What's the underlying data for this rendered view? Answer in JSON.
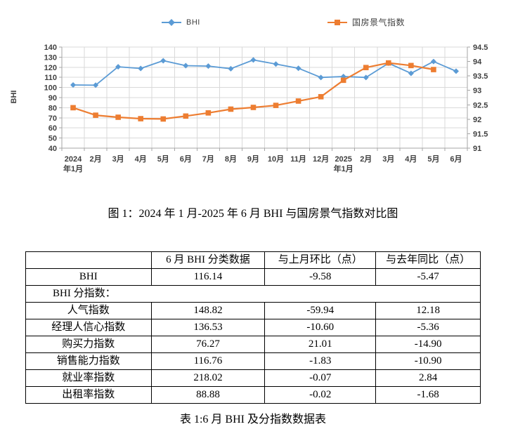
{
  "captions": {
    "figure": "图 1：2024 年 1 月-2025 年 6 月 BHI 与国房景气指数对比图",
    "table": "表 1:6 月 BHI 及分指数数据表"
  },
  "chart_data": {
    "type": "line",
    "title": "",
    "y_axis_title": "BHI",
    "legend_position": "top",
    "grid": true,
    "x_labels": [
      "2024\n年1月",
      "2月",
      "3月",
      "4月",
      "5月",
      "6月",
      "7月",
      "8月",
      "9月",
      "10月",
      "11月",
      "12月",
      "2025\n年1月",
      "2月",
      "3月",
      "4月",
      "5月",
      "6月"
    ],
    "left_axis": {
      "min": 40,
      "max": 140,
      "step": 10,
      "ticks": [
        "140",
        "130",
        "120",
        "110",
        "100",
        "90",
        "80",
        "70",
        "60",
        "50",
        "40"
      ]
    },
    "right_axis": {
      "min": 91,
      "max": 94.5,
      "step": 0.5,
      "ticks": [
        "94.5",
        "94",
        "93.5",
        "93",
        "92.5",
        "92",
        "91.5",
        "91"
      ]
    },
    "series": [
      {
        "name": "BHI",
        "axis": "left",
        "color": "#5B9BD5",
        "marker": "diamond",
        "values": [
          102.5,
          102.3,
          120.5,
          118.8,
          126.5,
          121.61,
          121.2,
          118.6,
          127.2,
          123.2,
          119.0,
          109.9,
          110.8,
          109.9,
          124.0,
          114.0,
          125.72,
          116.14
        ]
      },
      {
        "name": "国房景气指数",
        "axis": "right",
        "color": "#ED7D31",
        "marker": "square",
        "values": [
          92.4,
          92.14,
          92.07,
          92.02,
          92.01,
          92.11,
          92.22,
          92.35,
          92.41,
          92.48,
          92.63,
          92.78,
          93.35,
          93.79,
          93.95,
          93.86,
          93.72,
          null
        ]
      }
    ]
  },
  "table": {
    "headers": [
      "",
      "6 月 BHI 分类数据",
      "与上月环比（点）",
      "与去年同比（点）"
    ],
    "rows": [
      {
        "label": "BHI",
        "value": "116.14",
        "mom": "-9.58",
        "yoy": "-5.47"
      },
      {
        "label": "BHI 分指数：",
        "section": true
      },
      {
        "label": "人气指数",
        "value": "148.82",
        "mom": "-59.94",
        "yoy": "12.18"
      },
      {
        "label": "经理人信心指数",
        "value": "136.53",
        "mom": "-10.60",
        "yoy": "-5.36"
      },
      {
        "label": "购买力指数",
        "value": "76.27",
        "mom": "21.01",
        "yoy": "-14.90"
      },
      {
        "label": "销售能力指数",
        "value": "116.76",
        "mom": "-1.83",
        "yoy": "-10.90"
      },
      {
        "label": "就业率指数",
        "value": "218.02",
        "mom": "-0.07",
        "yoy": "2.84"
      },
      {
        "label": "出租率指数",
        "value": "88.88",
        "mom": "-0.02",
        "yoy": "-1.68"
      }
    ]
  }
}
